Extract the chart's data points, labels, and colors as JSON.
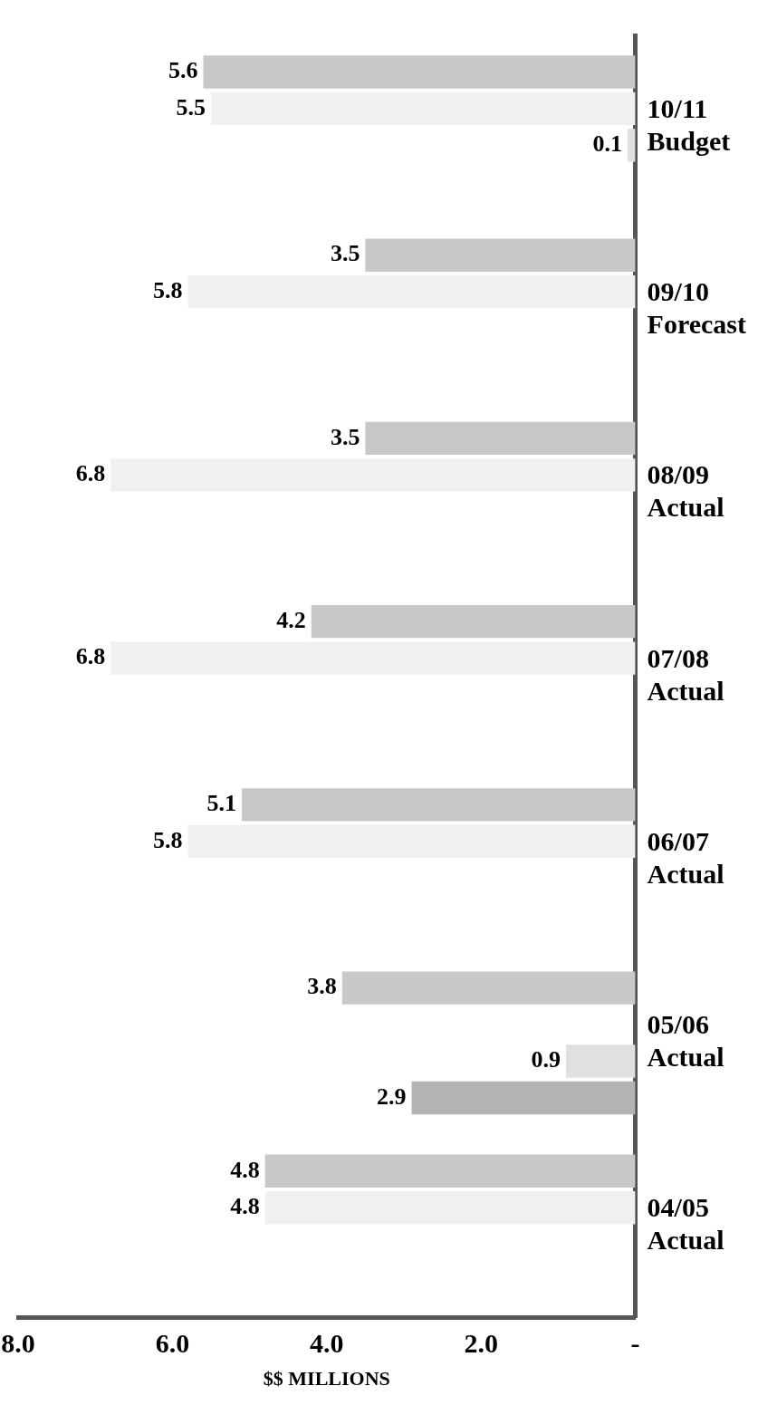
{
  "chart_data": {
    "type": "bar",
    "orientation": "horizontal",
    "xlabel": "$$ MILLIONS",
    "categories": [
      "10/11 Budget",
      "09/10 Forecast",
      "08/09 Actual",
      "07/08 Actual",
      "06/07 Actual",
      "05/06 Actual",
      "04/05 Actual"
    ],
    "series": [
      {
        "color": "#c8c8c8",
        "values": [
          5.6,
          3.5,
          3.5,
          4.2,
          5.1,
          3.8,
          4.8
        ]
      },
      {
        "color": "#f0f0f0",
        "values": [
          5.5,
          5.8,
          6.8,
          6.8,
          5.8,
          null,
          4.8
        ]
      },
      {
        "color": "#e0e0e0",
        "values": [
          0.1,
          null,
          null,
          null,
          null,
          0.9,
          null
        ]
      },
      {
        "color": "#b4b4b4",
        "values": [
          null,
          null,
          null,
          null,
          null,
          2.9,
          null
        ]
      }
    ],
    "xlim": [
      8,
      0
    ],
    "xticks": [
      {
        "value": 0,
        "label": "-"
      },
      {
        "value": 2,
        "label": "2.0"
      },
      {
        "value": 4,
        "label": "4.0"
      },
      {
        "value": 6,
        "label": "6.0"
      },
      {
        "value": 8,
        "label": "8.0"
      }
    ],
    "data_labels": true,
    "grid": false,
    "legend": false
  }
}
